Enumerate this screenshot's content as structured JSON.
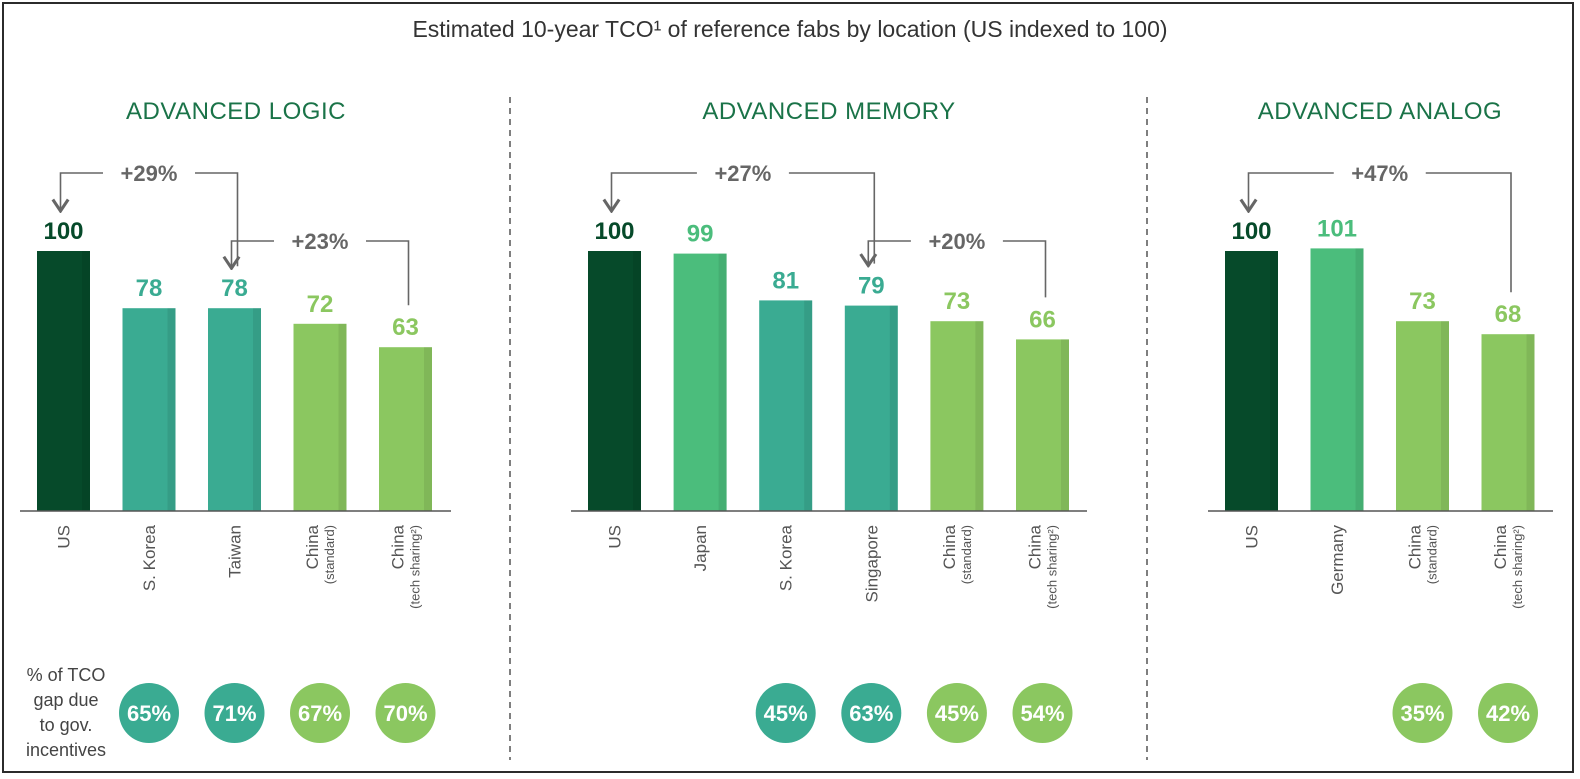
{
  "title": "Estimated 10-year TCO¹ of reference fabs by location (US indexed to 100)",
  "footnote_label": [
    "% of TCO",
    "gap due",
    "to gov.",
    "incentives"
  ],
  "colors": {
    "dark_green": "#064a2a",
    "mid_green": "#4bbd7c",
    "teal": "#3aab92",
    "light_green": "#8bc760",
    "title_green": "#1a7348",
    "arrow_gray": "#666666"
  },
  "chart_data": [
    {
      "type": "bar",
      "title": "ADVANCED LOGIC",
      "categories": [
        {
          "name": "US",
          "sub": ""
        },
        {
          "name": "S. Korea",
          "sub": ""
        },
        {
          "name": "Taiwan",
          "sub": ""
        },
        {
          "name": "China",
          "sub": "(standard)"
        },
        {
          "name": "China",
          "sub": "(tech sharing²)"
        }
      ],
      "values": [
        100,
        78,
        78,
        72,
        63
      ],
      "value_labels": [
        "100",
        "78",
        "78",
        "72",
        "63"
      ],
      "colors": [
        "#064a2a",
        "#3aab92",
        "#3aab92",
        "#8bc760",
        "#8bc760"
      ],
      "label_colors": [
        "#064a2a",
        "#3aab92",
        "#3aab92",
        "#8bc760",
        "#8bc760"
      ],
      "annotations": [
        {
          "label": "+29%",
          "from": 2,
          "to": 0
        },
        {
          "label": "+23%",
          "from": 4,
          "to": 2
        }
      ],
      "gov_incentive_share": [
        null,
        "65%",
        "71%",
        "67%",
        "70%"
      ],
      "ylim": [
        0,
        100
      ]
    },
    {
      "type": "bar",
      "title": "ADVANCED MEMORY",
      "categories": [
        {
          "name": "US",
          "sub": ""
        },
        {
          "name": "Japan",
          "sub": ""
        },
        {
          "name": "S. Korea",
          "sub": ""
        },
        {
          "name": "Singapore",
          "sub": ""
        },
        {
          "name": "China",
          "sub": "(standard)"
        },
        {
          "name": "China",
          "sub": "(tech sharing²)"
        }
      ],
      "values": [
        100,
        99,
        81,
        79,
        73,
        66
      ],
      "value_labels": [
        "100",
        "99",
        "81",
        "79",
        "73",
        "66"
      ],
      "colors": [
        "#064a2a",
        "#4bbd7c",
        "#3aab92",
        "#3aab92",
        "#8bc760",
        "#8bc760"
      ],
      "label_colors": [
        "#064a2a",
        "#4bbd7c",
        "#3aab92",
        "#3aab92",
        "#8bc760",
        "#8bc760"
      ],
      "annotations": [
        {
          "label": "+27%",
          "from": 3,
          "to": 0
        },
        {
          "label": "+20%",
          "from": 5,
          "to": 3
        }
      ],
      "gov_incentive_share": [
        null,
        null,
        "45%",
        "63%",
        "45%",
        "54%"
      ],
      "ylim": [
        0,
        100
      ]
    },
    {
      "type": "bar",
      "title": "ADVANCED ANALOG",
      "categories": [
        {
          "name": "US",
          "sub": ""
        },
        {
          "name": "Germany",
          "sub": ""
        },
        {
          "name": "China",
          "sub": "(standard)"
        },
        {
          "name": "China",
          "sub": "(tech sharing²)"
        }
      ],
      "values": [
        100,
        101,
        73,
        68
      ],
      "value_labels": [
        "100",
        "101",
        "73",
        "68"
      ],
      "colors": [
        "#064a2a",
        "#4bbd7c",
        "#8bc760",
        "#8bc760"
      ],
      "label_colors": [
        "#064a2a",
        "#4bbd7c",
        "#8bc760",
        "#8bc760"
      ],
      "annotations": [
        {
          "label": "+47%",
          "from": 3,
          "to": 0
        }
      ],
      "gov_incentive_share": [
        null,
        null,
        "35%",
        "42%"
      ],
      "ylim": [
        0,
        100
      ]
    }
  ]
}
